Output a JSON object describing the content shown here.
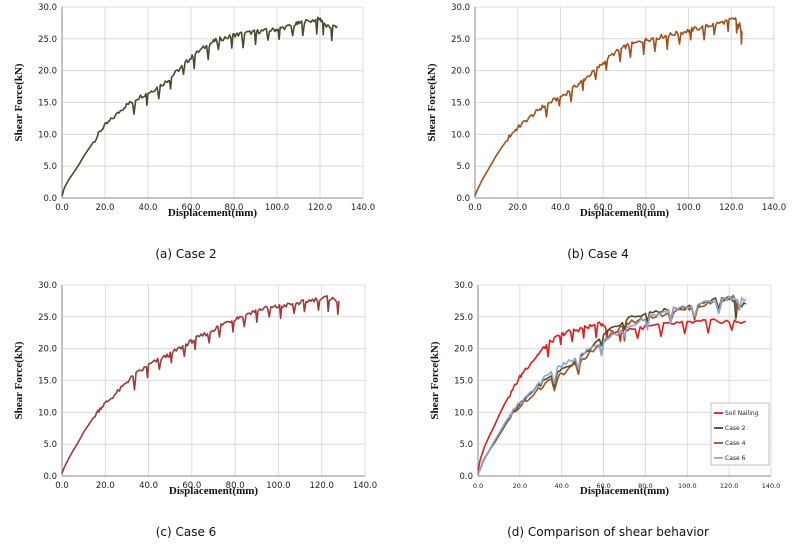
{
  "chart_data": [
    {
      "type": "line",
      "caption": "(a) Case 2",
      "xlabel": "Displacement(mm)",
      "ylabel": "Shear Force(kN)",
      "xlim": [
        0,
        140
      ],
      "ylim": [
        0,
        30
      ],
      "xticks": [
        "0.0",
        "20.0",
        "40.0",
        "60.0",
        "80.0",
        "100.0",
        "120.0",
        "140.0"
      ],
      "yticks": [
        "0.0",
        "5.0",
        "10.0",
        "15.0",
        "20.0",
        "25.0",
        "30.0"
      ],
      "grid": true,
      "series": [
        {
          "color": "#4a4a2e",
          "x": [
            0,
            1,
            3,
            5,
            8,
            10,
            13,
            16,
            18,
            20,
            22,
            25,
            28,
            30,
            32,
            35,
            38,
            40,
            42,
            45,
            48,
            50,
            52,
            55,
            58,
            60,
            62,
            65,
            68,
            70,
            72,
            75,
            78,
            80,
            82,
            85,
            88,
            90,
            92,
            95,
            98,
            100,
            102,
            105,
            108,
            110,
            112,
            115,
            118,
            120,
            121,
            122,
            124,
            126,
            128
          ],
          "y": [
            0.3,
            1.5,
            2.8,
            3.8,
            5.3,
            6.5,
            8,
            9.5,
            10.6,
            11.4,
            12,
            13,
            14,
            14.6,
            15,
            15.7,
            16.2,
            16.5,
            16.9,
            17.5,
            18.2,
            18.7,
            19.4,
            20.4,
            21.4,
            22,
            22.6,
            23.4,
            24,
            24.5,
            24.8,
            25.1,
            25.3,
            25.6,
            25.7,
            25.9,
            26,
            26.1,
            26.2,
            26.3,
            26.4,
            26.5,
            26.7,
            26.9,
            27.2,
            27.4,
            27.6,
            27.8,
            28,
            28.1,
            27.8,
            27.2,
            26.8,
            26.9,
            27
          ]
        }
      ]
    },
    {
      "type": "line",
      "caption": "(b) Case 4",
      "xlabel": "Displacement(mm)",
      "ylabel": "Shear Force(kN)",
      "xlim": [
        0,
        140
      ],
      "ylim": [
        0,
        30
      ],
      "xticks": [
        "0.0",
        "20.0",
        "40.0",
        "60.0",
        "80.0",
        "100.0",
        "120.0",
        "140.0"
      ],
      "yticks": [
        "0.0",
        "5.0",
        "10.0",
        "15.0",
        "20.0",
        "25.0",
        "30.0"
      ],
      "grid": true,
      "series": [
        {
          "color": "#a0521c",
          "x": [
            0,
            1,
            3,
            5,
            8,
            10,
            13,
            16,
            18,
            20,
            22,
            25,
            28,
            30,
            32,
            35,
            38,
            40,
            42,
            45,
            48,
            50,
            52,
            55,
            58,
            60,
            62,
            65,
            68,
            70,
            72,
            75,
            78,
            80,
            82,
            85,
            88,
            90,
            92,
            95,
            98,
            100,
            102,
            105,
            108,
            110,
            112,
            115,
            118,
            120,
            122,
            123,
            124,
            125
          ],
          "y": [
            0.3,
            1.2,
            2.6,
            3.8,
            5.5,
            6.7,
            8.2,
            9.6,
            10.4,
            11,
            11.6,
            12.5,
            13.3,
            13.9,
            14.4,
            15,
            15.5,
            15.9,
            16.3,
            17,
            17.8,
            18.3,
            18.9,
            19.7,
            20.6,
            21.2,
            21.9,
            22.7,
            23.3,
            23.7,
            24,
            24.3,
            24.6,
            24.8,
            25,
            25.2,
            25.4,
            25.5,
            25.7,
            25.9,
            26.1,
            26.3,
            26.5,
            26.7,
            26.9,
            27.1,
            27.3,
            27.5,
            27.8,
            28,
            28.2,
            26.8,
            27.2,
            26.2
          ]
        }
      ]
    },
    {
      "type": "line",
      "caption": "(c) Case 6",
      "xlabel": "Displacement(mm)",
      "ylabel": "Shear Force(kN)",
      "xlim": [
        0,
        140
      ],
      "ylim": [
        0,
        30
      ],
      "xticks": [
        "0.0",
        "20.0",
        "40.0",
        "60.0",
        "80.0",
        "100.0",
        "120.0",
        "140.0"
      ],
      "yticks": [
        "0.0",
        "5.0",
        "10.0",
        "15.0",
        "20.0",
        "25.0",
        "30.0"
      ],
      "grid": true,
      "series": [
        {
          "color": "#9e3a3a",
          "x": [
            0,
            1,
            3,
            5,
            8,
            10,
            13,
            16,
            18,
            20,
            22,
            25,
            28,
            30,
            32,
            35,
            38,
            40,
            42,
            45,
            48,
            50,
            52,
            55,
            58,
            60,
            62,
            65,
            68,
            70,
            72,
            75,
            78,
            80,
            82,
            85,
            88,
            90,
            92,
            95,
            98,
            100,
            102,
            105,
            108,
            110,
            112,
            115,
            118,
            120,
            122,
            124,
            126,
            128
          ],
          "y": [
            0.4,
            1.3,
            2.7,
            3.9,
            5.6,
            6.9,
            8.4,
            9.9,
            10.8,
            11.4,
            12,
            13,
            14,
            14.8,
            15.4,
            16.2,
            16.9,
            17.4,
            17.8,
            18.3,
            18.8,
            19.1,
            19.6,
            20.2,
            20.8,
            21.2,
            21.6,
            22.1,
            22.6,
            23,
            23.4,
            24,
            24.4,
            24.7,
            25,
            25.4,
            25.8,
            26,
            26.2,
            26.4,
            26.5,
            26.6,
            26.7,
            26.9,
            27.1,
            27.2,
            27.4,
            27.6,
            27.8,
            27.9,
            28,
            27.9,
            27.7,
            27.5
          ]
        }
      ]
    },
    {
      "type": "line",
      "caption": "(d) Comparison of shear behavior",
      "xlabel": "Displacement(mm)",
      "ylabel": "Shear Force(kN)",
      "xlim": [
        0,
        140
      ],
      "ylim": [
        0,
        30
      ],
      "xticks": [
        "0.0",
        "20.0",
        "40.0",
        "60.0",
        "80.0",
        "100.0",
        "120.0",
        "140.0"
      ],
      "yticks": [
        "0.0",
        "5.0",
        "10.0",
        "15.0",
        "20.0",
        "25.0",
        "30.0"
      ],
      "grid": true,
      "legend": "bottom-right",
      "series": [
        {
          "name": "Soil Nailing",
          "color": "#e31b1b",
          "x": [
            0,
            1,
            3,
            5,
            8,
            10,
            13,
            16,
            18,
            20,
            22,
            25,
            28,
            30,
            32,
            35,
            38,
            40,
            42,
            45,
            48,
            50,
            52,
            55,
            58,
            60,
            62,
            65,
            68,
            70,
            75,
            80,
            85,
            90,
            95,
            100,
            105,
            110,
            115,
            120,
            125,
            128
          ],
          "y": [
            0.8,
            2.5,
            4.5,
            6,
            8,
            9.5,
            11.5,
            13.2,
            14.4,
            15.5,
            16.5,
            17.7,
            18.8,
            19.6,
            20.3,
            21.2,
            21.8,
            22.2,
            22.5,
            22.8,
            23,
            23.2,
            23.4,
            23.6,
            23.8,
            23.9,
            23,
            22.6,
            22.8,
            23,
            23.2,
            23.4,
            23.6,
            23.8,
            24,
            24.1,
            24.2,
            24.3,
            24.3,
            24.3,
            24.2,
            24.2
          ]
        },
        {
          "name": "Case 2",
          "color": "#4a4a2e",
          "x": [
            0,
            3,
            8,
            13,
            18,
            22,
            28,
            32,
            38,
            42,
            48,
            52,
            58,
            62,
            68,
            72,
            78,
            82,
            88,
            92,
            98,
            102,
            108,
            112,
            118,
            121,
            124,
            128
          ],
          "y": [
            0.3,
            2.8,
            5.3,
            8,
            10.6,
            12,
            14,
            15,
            16.2,
            16.9,
            18.2,
            19.4,
            21.4,
            22.6,
            24,
            24.8,
            25.3,
            25.7,
            26,
            26.2,
            26.4,
            26.7,
            27.2,
            27.6,
            28,
            27.8,
            26.8,
            27
          ]
        },
        {
          "name": "Case 4",
          "color": "#a0521c",
          "x": [
            0,
            3,
            8,
            13,
            18,
            22,
            28,
            32,
            38,
            42,
            48,
            52,
            58,
            62,
            68,
            72,
            78,
            82,
            88,
            92,
            98,
            102,
            108,
            112,
            118,
            122,
            124,
            125
          ],
          "y": [
            0.3,
            2.6,
            5.5,
            8.2,
            10.4,
            11.6,
            13.3,
            14.4,
            15.5,
            16.3,
            17.8,
            18.9,
            20.6,
            21.9,
            23.3,
            24,
            24.6,
            25,
            25.4,
            25.7,
            26.1,
            26.5,
            26.9,
            27.3,
            27.8,
            28.2,
            27.2,
            26.2
          ]
        },
        {
          "name": "Case 6",
          "color": "#8fa6d0",
          "x": [
            0,
            3,
            8,
            13,
            18,
            22,
            28,
            32,
            38,
            42,
            48,
            52,
            58,
            62,
            68,
            72,
            78,
            82,
            88,
            92,
            98,
            102,
            108,
            112,
            118,
            122,
            126,
            128
          ],
          "y": [
            0.4,
            2.7,
            5.6,
            8.4,
            10.8,
            12,
            14,
            15.4,
            16.9,
            17.8,
            18.8,
            19.6,
            20.8,
            21.6,
            22.6,
            23.4,
            24.4,
            25,
            25.8,
            26.2,
            26.5,
            26.7,
            27.1,
            27.4,
            27.8,
            28,
            27.7,
            27.5
          ]
        }
      ]
    }
  ]
}
